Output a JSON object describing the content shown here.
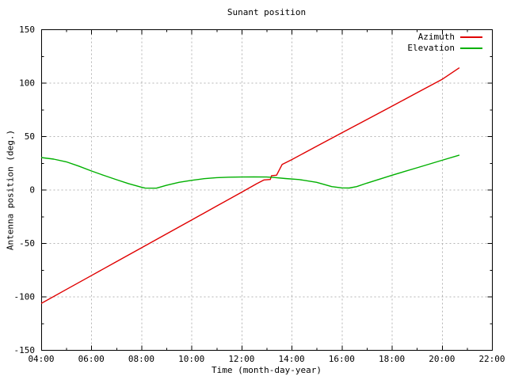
{
  "chart_data": {
    "type": "line",
    "title": "Sunant position",
    "xlabel": "Time (month-day-year)",
    "ylabel": "Antenna position (deg.)",
    "x_unit": "hour_of_day",
    "xlim_hours": [
      4,
      22
    ],
    "ylim": [
      -150,
      150
    ],
    "grid": true,
    "legend_position": "top-right-inside",
    "x_ticks": [
      {
        "hour": 4,
        "label": "04:00"
      },
      {
        "hour": 6,
        "label": "06:00"
      },
      {
        "hour": 8,
        "label": "08:00"
      },
      {
        "hour": 10,
        "label": "10:00"
      },
      {
        "hour": 12,
        "label": "12:00"
      },
      {
        "hour": 14,
        "label": "14:00"
      },
      {
        "hour": 16,
        "label": "16:00"
      },
      {
        "hour": 18,
        "label": "18:00"
      },
      {
        "hour": 20,
        "label": "20:00"
      },
      {
        "hour": 22,
        "label": "22:00"
      }
    ],
    "x_minor_tick_hours": [
      5,
      7,
      9,
      11,
      13,
      15,
      17,
      19,
      21
    ],
    "y_ticks": [
      {
        "value": -150,
        "label": "-150"
      },
      {
        "value": -100,
        "label": "-100"
      },
      {
        "value": -50,
        "label": "-50"
      },
      {
        "value": 0,
        "label": "0"
      },
      {
        "value": 50,
        "label": "50"
      },
      {
        "value": 100,
        "label": "100"
      },
      {
        "value": 150,
        "label": "150"
      }
    ],
    "y_minor_tick_values": [
      -125,
      -75,
      -25,
      25,
      75,
      125
    ],
    "colors": {
      "background": "#ffffff",
      "axis": "#000000",
      "grid": "#b4b4b4",
      "text": "#000000"
    },
    "series": [
      {
        "name": "Azimuth",
        "color": "#e00000",
        "points": [
          [
            4.0,
            -106.5
          ],
          [
            5.0,
            -93.5
          ],
          [
            6.0,
            -80.5
          ],
          [
            7.0,
            -67.5
          ],
          [
            8.0,
            -54.5
          ],
          [
            9.0,
            -41.5
          ],
          [
            10.0,
            -28.5
          ],
          [
            11.0,
            -15.5
          ],
          [
            12.0,
            -2.5
          ],
          [
            12.6,
            5.5
          ],
          [
            12.9,
            9.0
          ],
          [
            13.15,
            9.5
          ],
          [
            13.2,
            13.0
          ],
          [
            13.4,
            13.5
          ],
          [
            13.62,
            23.5
          ],
          [
            14.0,
            28.0
          ],
          [
            15.0,
            40.5
          ],
          [
            16.0,
            53.0
          ],
          [
            17.0,
            65.5
          ],
          [
            18.0,
            78.0
          ],
          [
            19.0,
            90.5
          ],
          [
            20.0,
            103.0
          ],
          [
            20.7,
            114.0
          ]
        ]
      },
      {
        "name": "Elevation",
        "color": "#00b000",
        "points": [
          [
            4.0,
            30.0
          ],
          [
            4.5,
            28.5
          ],
          [
            5.0,
            26.0
          ],
          [
            5.5,
            22.0
          ],
          [
            6.0,
            17.5
          ],
          [
            6.5,
            13.3
          ],
          [
            7.0,
            9.3
          ],
          [
            7.5,
            5.5
          ],
          [
            8.0,
            2.3
          ],
          [
            8.15,
            1.4
          ],
          [
            8.6,
            1.3
          ],
          [
            9.0,
            4.0
          ],
          [
            9.5,
            6.8
          ],
          [
            10.0,
            8.7
          ],
          [
            10.5,
            10.2
          ],
          [
            11.0,
            11.2
          ],
          [
            11.5,
            11.6
          ],
          [
            12.0,
            11.8
          ],
          [
            12.5,
            11.9
          ],
          [
            13.0,
            11.8
          ],
          [
            13.3,
            11.3
          ],
          [
            13.75,
            10.4
          ],
          [
            14.3,
            9.4
          ],
          [
            15.0,
            6.8
          ],
          [
            15.6,
            2.8
          ],
          [
            16.0,
            1.6
          ],
          [
            16.3,
            1.5
          ],
          [
            16.6,
            2.8
          ],
          [
            17.0,
            6.0
          ],
          [
            18.0,
            13.4
          ],
          [
            19.0,
            20.4
          ],
          [
            20.0,
            27.4
          ],
          [
            20.7,
            32.3
          ]
        ]
      }
    ]
  }
}
